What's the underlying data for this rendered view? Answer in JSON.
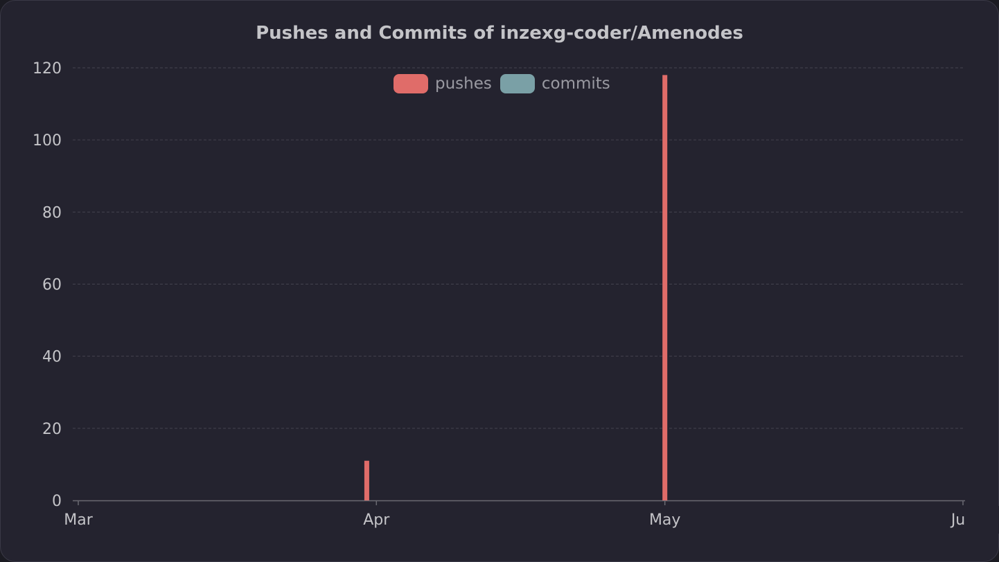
{
  "chart_data": {
    "type": "bar",
    "title": "Pushes and Commits of inzexg-coder/Amenodes",
    "xlabel": "",
    "ylabel": "",
    "ylim": [
      0,
      120
    ],
    "yticks": [
      0,
      20,
      40,
      60,
      80,
      100,
      120
    ],
    "xticks": [
      "Mar",
      "Apr",
      "May",
      "Jun"
    ],
    "x_axis_domain": [
      "2023-03-01",
      "2023-06-01"
    ],
    "legend_position": "top-center",
    "grid": true,
    "series": [
      {
        "name": "pushes",
        "color": "#e06c69",
        "points": [
          {
            "date": "2023-03-31",
            "value": 11
          },
          {
            "date": "2023-05-01",
            "value": 118
          }
        ]
      },
      {
        "name": "commits",
        "color": "#7aa0a6",
        "points": []
      }
    ]
  }
}
